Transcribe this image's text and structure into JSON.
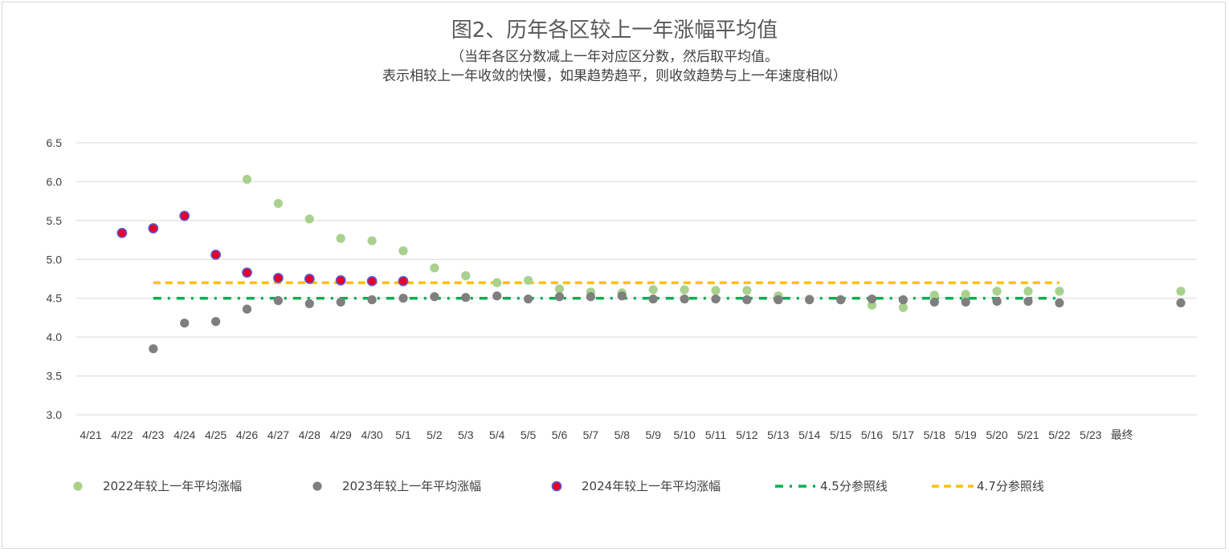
{
  "chart_data": {
    "type": "scatter",
    "title": "图2、历年各区较上一年涨幅平均值",
    "subtitle_lines": [
      "（当年各区分数减上一年对应区分数，然后取平均值。",
      "表示相较上一年收敛的快慢，如果趋势趋平，则收敛趋势与上一年速度相似）"
    ],
    "categories": [
      "4/21",
      "4/22",
      "4/23",
      "4/24",
      "4/25",
      "4/26",
      "4/27",
      "4/28",
      "4/29",
      "4/30",
      "5/1",
      "5/2",
      "5/3",
      "5/4",
      "5/5",
      "5/6",
      "5/7",
      "5/8",
      "5/9",
      "5/10",
      "5/11",
      "5/12",
      "5/13",
      "5/14",
      "5/15",
      "5/16",
      "5/17",
      "5/18",
      "5/19",
      "5/20",
      "5/21",
      "5/22",
      "5/23",
      "最终"
    ],
    "ylim": [
      3.0,
      6.5
    ],
    "yticks": [
      "3.0",
      "3.5",
      "4.0",
      "4.5",
      "5.0",
      "5.5",
      "6.0",
      "6.5"
    ],
    "grid": true,
    "legend_position": "bottom",
    "series": [
      {
        "name": "2022年较上一年平均涨幅",
        "color": "#a9d18e",
        "marker": "circle",
        "values": [
          null,
          null,
          null,
          null,
          null,
          6.03,
          5.72,
          5.52,
          5.27,
          5.24,
          5.11,
          4.89,
          4.79,
          4.7,
          4.73,
          4.62,
          4.58,
          4.57,
          4.61,
          4.61,
          4.6,
          4.6,
          4.53,
          4.49,
          4.48,
          4.41,
          4.38,
          4.54,
          4.55,
          4.59,
          4.59,
          4.59,
          null,
          4.59
        ]
      },
      {
        "name": "2023年较上一年平均涨幅",
        "color": "#7f7f7f",
        "marker": "circle",
        "values": [
          null,
          null,
          3.85,
          4.18,
          4.2,
          4.36,
          4.47,
          4.43,
          4.45,
          4.48,
          4.5,
          4.52,
          4.51,
          4.53,
          4.49,
          4.52,
          4.52,
          4.53,
          4.49,
          4.49,
          4.49,
          4.48,
          4.48,
          4.48,
          4.48,
          4.49,
          4.48,
          4.45,
          4.45,
          4.46,
          4.46,
          4.44,
          null,
          4.44
        ]
      },
      {
        "name": "2024年较上一年平均涨幅",
        "color": "#e8002a",
        "edge_color": "#5b5bd6",
        "marker": "circle",
        "values": [
          null,
          5.34,
          5.4,
          5.56,
          5.06,
          4.83,
          4.76,
          4.75,
          4.73,
          4.72,
          4.72,
          null,
          null,
          null,
          null,
          null,
          null,
          null,
          null,
          null,
          null,
          null,
          null,
          null,
          null,
          null,
          null,
          null,
          null,
          null,
          null,
          null,
          null,
          null
        ]
      }
    ],
    "reference_lines": [
      {
        "name": "4.5分参照线",
        "value": 4.5,
        "color": "#00b050",
        "style": "dash-dot",
        "from": "4/23",
        "to": "5/22"
      },
      {
        "name": "4.7分参照线",
        "value": 4.7,
        "color": "#ffc000",
        "style": "dashed",
        "from": "4/23",
        "to": "5/22"
      }
    ]
  }
}
